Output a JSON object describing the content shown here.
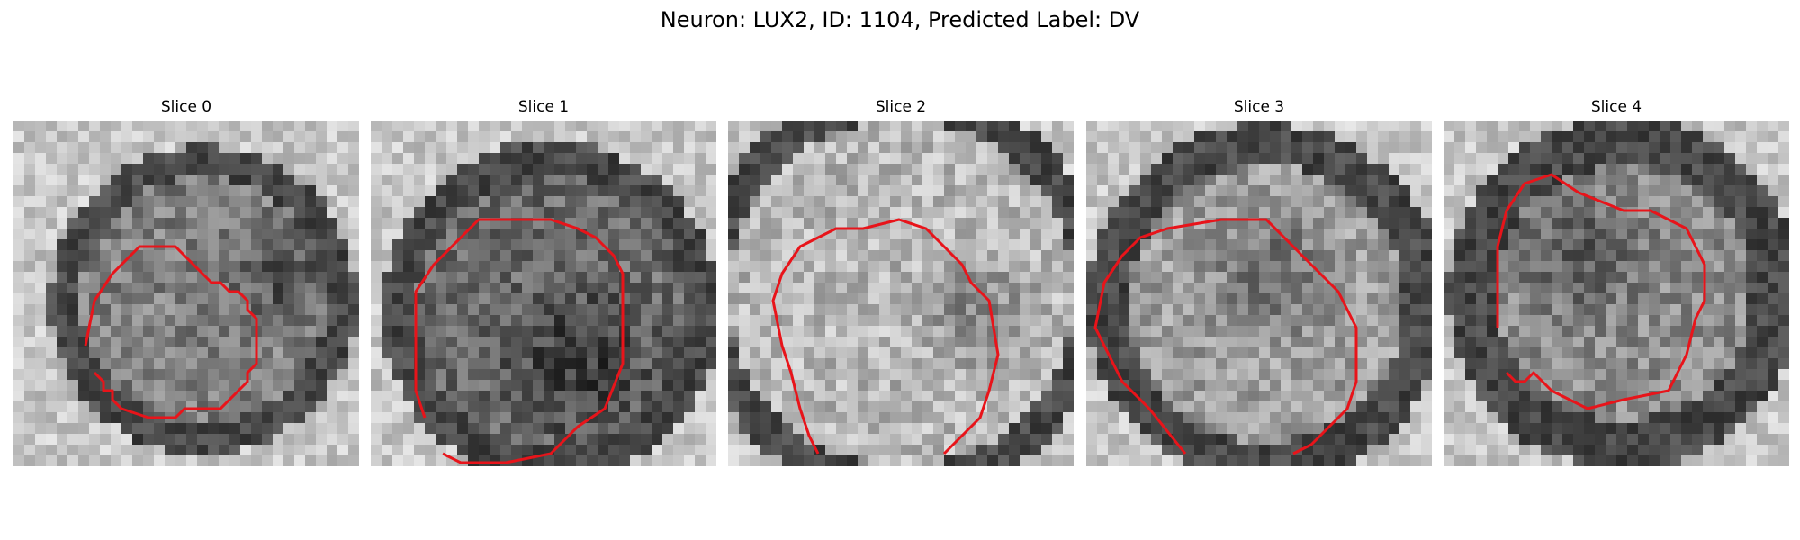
{
  "figure": {
    "title": "Neuron: LUX2, ID: 1104, Predicted Label: DV"
  },
  "contour_color": "#e8141a",
  "panels": [
    {
      "label": "Slice 0"
    },
    {
      "label": "Slice 1"
    },
    {
      "label": "Slice 2"
    },
    {
      "label": "Slice 3"
    },
    {
      "label": "Slice 4"
    }
  ]
}
